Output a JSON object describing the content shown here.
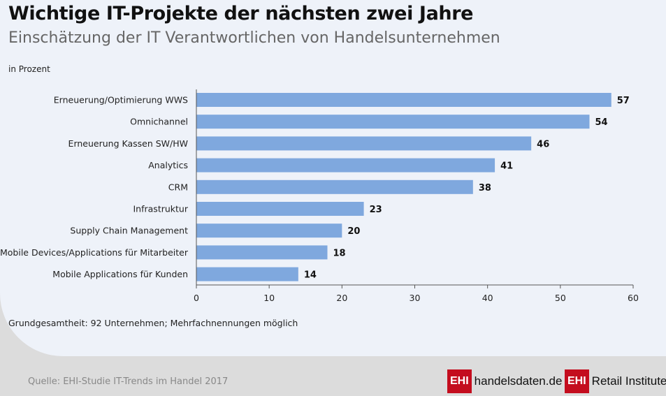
{
  "header": {
    "title": "Wichtige IT-Projekte der nächsten zwei Jahre",
    "subtitle": "Einschätzung der IT Verantwortlichen von Handelsunternehmen",
    "unit": "in Prozent"
  },
  "footer": {
    "note": "Grundgesamtheit: 92 Unternehmen; Mehrfachnennungen möglich",
    "source": "Quelle: EHI-Studie IT-Trends im Handel 2017",
    "logo1_mark": "EHI",
    "logo1_text": "handelsdaten.de",
    "logo2_mark": "EHI",
    "logo2_text": "Retail Institute",
    "logo2_reg": "®"
  },
  "colors": {
    "bar": "#7fa8de",
    "axis": "#555555"
  },
  "chart_data": {
    "type": "bar",
    "orientation": "horizontal",
    "title": "Wichtige IT-Projekte der nächsten zwei Jahre",
    "subtitle": "Einschätzung der IT Verantwortlichen von Handelsunternehmen",
    "xlabel": "in Prozent",
    "ylabel": "",
    "xlim": [
      0,
      60
    ],
    "xticks": [
      0,
      10,
      20,
      30,
      40,
      50,
      60
    ],
    "categories": [
      "Erneuerung/Optimierung WWS",
      "Omnichannel",
      "Erneuerung Kassen SW/HW",
      "Analytics",
      "CRM",
      "Infrastruktur",
      "Supply Chain Management",
      "Mobile Devices/Applications für Mitarbeiter",
      "Mobile Applications für Kunden"
    ],
    "values": [
      57,
      54,
      46,
      41,
      38,
      23,
      20,
      18,
      14
    ],
    "grid": false,
    "legend": "none"
  }
}
